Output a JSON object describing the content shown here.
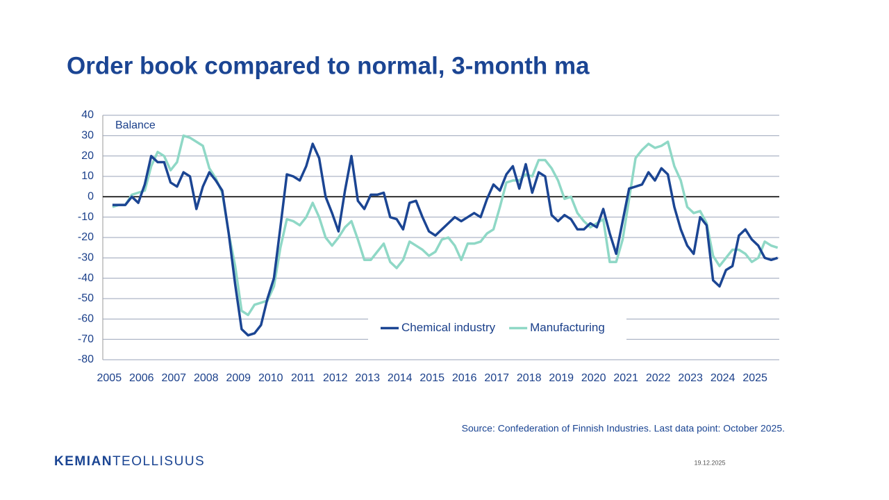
{
  "chart_data": {
    "type": "line",
    "title": "Order book compared to normal, 3-month ma",
    "annotation": "Balance",
    "source": "Source: Confederation of Finnish Industries. Last data point: October 2025.",
    "x": [
      2005.1,
      2005.3,
      2005.5,
      2005.7,
      2005.9,
      2006.1,
      2006.3,
      2006.5,
      2006.7,
      2006.9,
      2007.1,
      2007.3,
      2007.5,
      2007.7,
      2007.9,
      2008.1,
      2008.3,
      2008.5,
      2008.7,
      2008.9,
      2009.1,
      2009.3,
      2009.5,
      2009.7,
      2009.9,
      2010.1,
      2010.3,
      2010.5,
      2010.7,
      2010.9,
      2011.1,
      2011.3,
      2011.5,
      2011.7,
      2011.9,
      2012.1,
      2012.3,
      2012.5,
      2012.7,
      2012.9,
      2013.1,
      2013.3,
      2013.5,
      2013.7,
      2013.9,
      2014.1,
      2014.3,
      2014.5,
      2014.7,
      2014.9,
      2015.1,
      2015.3,
      2015.5,
      2015.7,
      2015.9,
      2016.1,
      2016.3,
      2016.5,
      2016.7,
      2016.9,
      2017.1,
      2017.3,
      2017.5,
      2017.7,
      2017.9,
      2018.1,
      2018.3,
      2018.5,
      2018.7,
      2018.9,
      2019.1,
      2019.3,
      2019.5,
      2019.7,
      2019.9,
      2020.1,
      2020.3,
      2020.5,
      2020.7,
      2020.9,
      2021.1,
      2021.3,
      2021.5,
      2021.7,
      2021.9,
      2022.1,
      2022.3,
      2022.5,
      2022.7,
      2022.9,
      2023.1,
      2023.3,
      2023.5,
      2023.7,
      2023.9,
      2024.1,
      2024.3,
      2024.5,
      2024.7,
      2024.9,
      2025.1,
      2025.3,
      2025.5,
      2025.7
    ],
    "series": [
      {
        "name": "Chemical industry",
        "color": "#1b4593",
        "values": [
          -4,
          -4,
          -4,
          0,
          -3,
          6,
          20,
          17,
          17,
          7,
          5,
          12,
          10,
          -6,
          5,
          12,
          8,
          3,
          -18,
          -43,
          -65,
          -68,
          -67,
          -63,
          -50,
          -40,
          -15,
          11,
          10,
          8,
          15,
          26,
          19,
          0,
          -8,
          -17,
          3,
          20,
          -2,
          -6,
          1,
          1,
          2,
          -10,
          -11,
          -16,
          -3,
          -2,
          -10,
          -17,
          -19,
          -16,
          -13,
          -10,
          -12,
          -10,
          -8,
          -10,
          -1,
          6,
          3,
          11,
          15,
          4,
          16,
          2,
          12,
          10,
          -9,
          -12,
          -9,
          -11,
          -16,
          -16,
          -13,
          -15,
          -6,
          -18,
          -28,
          -12,
          4,
          5,
          6,
          12,
          8,
          14,
          11,
          -5,
          -16,
          -24,
          -28,
          -10,
          -14,
          -41,
          -44,
          -36,
          -34,
          -19,
          -16,
          -21,
          -24,
          -30,
          -31,
          -30
        ]
      },
      {
        "name": "Manufacturing",
        "color": "#8fd8c6",
        "values": [
          -5,
          -4,
          -4,
          1,
          2,
          3,
          15,
          22,
          20,
          13,
          17,
          30,
          29,
          27,
          25,
          14,
          9,
          2,
          -18,
          -34,
          -56,
          -58,
          -53,
          -52,
          -51,
          -44,
          -25,
          -11,
          -12,
          -14,
          -10,
          -3,
          -10,
          -20,
          -24,
          -20,
          -15,
          -12,
          -21,
          -31,
          -31,
          -27,
          -23,
          -32,
          -35,
          -31,
          -22,
          -24,
          -26,
          -29,
          -27,
          -21,
          -20,
          -24,
          -31,
          -23,
          -23,
          -22,
          -18,
          -16,
          -5,
          7,
          8,
          8,
          11,
          10,
          18,
          18,
          14,
          8,
          -1,
          0,
          -8,
          -12,
          -15,
          -13,
          -11,
          -32,
          -32,
          -21,
          -1,
          19,
          23,
          26,
          24,
          25,
          27,
          15,
          8,
          -5,
          -8,
          -7,
          -13,
          -29,
          -34,
          -30,
          -26,
          -26,
          -28,
          -32,
          -30,
          -22,
          -24,
          -25
        ]
      }
    ],
    "xlim": [
      2004.8,
      2025.75
    ],
    "xticks": [
      2005,
      2006,
      2007,
      2008,
      2009,
      2010,
      2011,
      2012,
      2013,
      2014,
      2015,
      2016,
      2017,
      2018,
      2019,
      2020,
      2021,
      2022,
      2023,
      2024,
      2025
    ],
    "ylim": [
      -80,
      40
    ],
    "yticks": [
      -80,
      -70,
      -60,
      -50,
      -40,
      -30,
      -20,
      -10,
      0,
      10,
      20,
      30,
      40
    ],
    "grid": true,
    "legend": "bottom-center"
  },
  "footer": {
    "logo_bold": "KEMIAN",
    "logo_light": "TEOLLISUUS",
    "date": "19.12.2025"
  }
}
